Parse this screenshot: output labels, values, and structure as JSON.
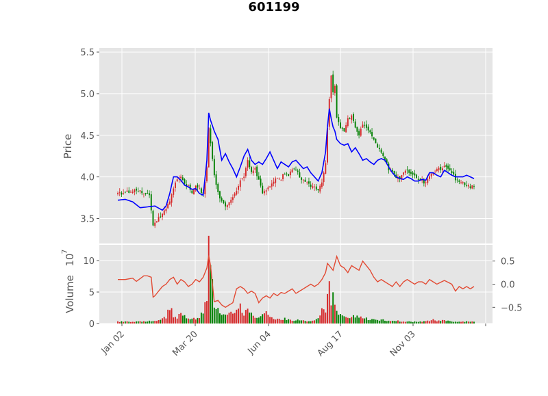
{
  "chart_data": {
    "type": "candlestick",
    "title": "601199",
    "colors": {
      "up": "#d62728",
      "down": "#008000",
      "ma": "#0000ff",
      "secondary": "#e24a33",
      "panel_bg": "#e5e5e5",
      "grid": "#ffffff"
    },
    "x_ticks": [
      "Jan 02",
      "Mar 20",
      "Jun 04",
      "Aug 17",
      "Nov 03"
    ],
    "price_panel": {
      "ylabel": "Price",
      "ylim": [
        3.2,
        5.55
      ],
      "yticks": [
        "3.5",
        "4.0",
        "4.5",
        "5.0",
        "5.5"
      ],
      "ytick_values": [
        3.5,
        4.0,
        4.5,
        5.0,
        5.5
      ],
      "close_series": [
        [
          0,
          3.8
        ],
        [
          5,
          3.82
        ],
        [
          10,
          3.85
        ],
        [
          14,
          3.8
        ],
        [
          17,
          3.78
        ],
        [
          19,
          3.4
        ],
        [
          21,
          3.48
        ],
        [
          24,
          3.55
        ],
        [
          26,
          3.62
        ],
        [
          28,
          3.7
        ],
        [
          30,
          3.85
        ],
        [
          32,
          3.98
        ],
        [
          34,
          4.02
        ],
        [
          36,
          3.9
        ],
        [
          38,
          3.88
        ],
        [
          40,
          3.82
        ],
        [
          42,
          3.9
        ],
        [
          44,
          3.85
        ],
        [
          46,
          3.8
        ],
        [
          48,
          4.1
        ],
        [
          49,
          4.6
        ],
        [
          50,
          4.4
        ],
        [
          52,
          4.0
        ],
        [
          54,
          3.8
        ],
        [
          56,
          3.7
        ],
        [
          58,
          3.65
        ],
        [
          60,
          3.7
        ],
        [
          62,
          3.75
        ],
        [
          64,
          3.85
        ],
        [
          66,
          3.95
        ],
        [
          68,
          4.0
        ],
        [
          70,
          4.2
        ],
        [
          72,
          4.05
        ],
        [
          74,
          4.1
        ],
        [
          76,
          3.95
        ],
        [
          78,
          3.82
        ],
        [
          80,
          3.85
        ],
        [
          82,
          3.9
        ],
        [
          84,
          3.95
        ],
        [
          86,
          4.0
        ],
        [
          88,
          3.98
        ],
        [
          90,
          4.05
        ],
        [
          92,
          4.02
        ],
        [
          94,
          4.1
        ],
        [
          96,
          4.08
        ],
        [
          98,
          4.0
        ],
        [
          100,
          3.95
        ],
        [
          102,
          3.92
        ],
        [
          104,
          3.9
        ],
        [
          106,
          3.88
        ],
        [
          108,
          3.85
        ],
        [
          110,
          3.95
        ],
        [
          112,
          4.15
        ],
        [
          113,
          4.6
        ],
        [
          114,
          4.95
        ],
        [
          115,
          5.2
        ],
        [
          116,
          5.0
        ],
        [
          117,
          5.1
        ],
        [
          118,
          4.7
        ],
        [
          120,
          4.6
        ],
        [
          122,
          4.55
        ],
        [
          124,
          4.7
        ],
        [
          126,
          4.72
        ],
        [
          128,
          4.6
        ],
        [
          130,
          4.5
        ],
        [
          132,
          4.62
        ],
        [
          134,
          4.6
        ],
        [
          136,
          4.55
        ],
        [
          138,
          4.45
        ],
        [
          140,
          4.35
        ],
        [
          142,
          4.3
        ],
        [
          144,
          4.2
        ],
        [
          146,
          4.1
        ],
        [
          148,
          4.05
        ],
        [
          150,
          4.0
        ],
        [
          152,
          3.97
        ],
        [
          154,
          4.05
        ],
        [
          156,
          4.08
        ],
        [
          158,
          4.02
        ],
        [
          160,
          4.0
        ],
        [
          162,
          3.98
        ],
        [
          164,
          3.95
        ],
        [
          166,
          3.93
        ],
        [
          168,
          4.0
        ],
        [
          170,
          4.05
        ],
        [
          172,
          4.1
        ],
        [
          174,
          4.08
        ],
        [
          176,
          4.12
        ],
        [
          178,
          4.1
        ],
        [
          180,
          4.05
        ],
        [
          182,
          3.98
        ],
        [
          184,
          3.95
        ],
        [
          186,
          3.92
        ],
        [
          188,
          3.9
        ],
        [
          190,
          3.88
        ],
        [
          192,
          3.88
        ]
      ],
      "ma_series": [
        [
          0,
          3.72
        ],
        [
          4,
          3.73
        ],
        [
          8,
          3.7
        ],
        [
          12,
          3.63
        ],
        [
          16,
          3.64
        ],
        [
          20,
          3.65
        ],
        [
          24,
          3.6
        ],
        [
          26,
          3.65
        ],
        [
          28,
          3.8
        ],
        [
          30,
          4.0
        ],
        [
          32,
          4.0
        ],
        [
          34,
          3.96
        ],
        [
          36,
          3.9
        ],
        [
          38,
          3.88
        ],
        [
          40,
          3.85
        ],
        [
          42,
          3.86
        ],
        [
          44,
          3.8
        ],
        [
          46,
          3.78
        ],
        [
          48,
          4.2
        ],
        [
          49,
          4.77
        ],
        [
          50,
          4.68
        ],
        [
          52,
          4.55
        ],
        [
          54,
          4.45
        ],
        [
          56,
          4.2
        ],
        [
          58,
          4.28
        ],
        [
          60,
          4.18
        ],
        [
          62,
          4.1
        ],
        [
          64,
          4.0
        ],
        [
          66,
          4.12
        ],
        [
          68,
          4.25
        ],
        [
          70,
          4.33
        ],
        [
          72,
          4.2
        ],
        [
          74,
          4.15
        ],
        [
          76,
          4.18
        ],
        [
          78,
          4.15
        ],
        [
          80,
          4.22
        ],
        [
          82,
          4.3
        ],
        [
          84,
          4.2
        ],
        [
          86,
          4.1
        ],
        [
          88,
          4.18
        ],
        [
          90,
          4.15
        ],
        [
          92,
          4.12
        ],
        [
          94,
          4.18
        ],
        [
          96,
          4.2
        ],
        [
          98,
          4.15
        ],
        [
          100,
          4.1
        ],
        [
          102,
          4.12
        ],
        [
          104,
          4.05
        ],
        [
          106,
          4.0
        ],
        [
          108,
          3.95
        ],
        [
          110,
          4.05
        ],
        [
          112,
          4.3
        ],
        [
          113,
          4.6
        ],
        [
          114,
          4.82
        ],
        [
          115,
          4.7
        ],
        [
          116,
          4.6
        ],
        [
          117,
          4.55
        ],
        [
          118,
          4.45
        ],
        [
          120,
          4.4
        ],
        [
          122,
          4.38
        ],
        [
          124,
          4.4
        ],
        [
          126,
          4.3
        ],
        [
          128,
          4.35
        ],
        [
          130,
          4.28
        ],
        [
          132,
          4.2
        ],
        [
          134,
          4.22
        ],
        [
          136,
          4.18
        ],
        [
          138,
          4.15
        ],
        [
          140,
          4.2
        ],
        [
          142,
          4.22
        ],
        [
          144,
          4.2
        ],
        [
          146,
          4.12
        ],
        [
          148,
          4.05
        ],
        [
          150,
          4.0
        ],
        [
          152,
          3.98
        ],
        [
          154,
          3.97
        ],
        [
          156,
          4.0
        ],
        [
          158,
          3.98
        ],
        [
          160,
          3.95
        ],
        [
          162,
          3.95
        ],
        [
          164,
          3.97
        ],
        [
          166,
          3.96
        ],
        [
          168,
          4.05
        ],
        [
          170,
          4.05
        ],
        [
          172,
          4.02
        ],
        [
          174,
          4.0
        ],
        [
          176,
          4.08
        ],
        [
          178,
          4.05
        ],
        [
          180,
          4.02
        ],
        [
          182,
          4.0
        ],
        [
          184,
          4.0
        ],
        [
          186,
          4.0
        ],
        [
          188,
          4.02
        ],
        [
          190,
          4.0
        ],
        [
          192,
          3.98
        ]
      ]
    },
    "volume_panel": {
      "ylabel": "Volume",
      "scale_label": "10",
      "scale_exponent": "7",
      "ylim": [
        0,
        12.5
      ],
      "yticks": [
        "0",
        "5",
        "10"
      ],
      "ytick_values": [
        0,
        5,
        10
      ],
      "volume_series": [
        [
          0,
          0.3
        ],
        [
          10,
          0.3
        ],
        [
          20,
          0.4
        ],
        [
          24,
          0.8
        ],
        [
          26,
          1.0
        ],
        [
          28,
          2.8
        ],
        [
          30,
          1.2
        ],
        [
          32,
          1.0
        ],
        [
          34,
          1.5
        ],
        [
          36,
          1.2
        ],
        [
          38,
          0.8
        ],
        [
          40,
          0.8
        ],
        [
          42,
          0.7
        ],
        [
          44,
          0.8
        ],
        [
          46,
          2.0
        ],
        [
          48,
          4.5
        ],
        [
          49,
          12.0
        ],
        [
          50,
          11.5
        ],
        [
          51,
          7.5
        ],
        [
          52,
          3.0
        ],
        [
          54,
          2.0
        ],
        [
          56,
          1.5
        ],
        [
          58,
          1.2
        ],
        [
          60,
          1.5
        ],
        [
          62,
          1.8
        ],
        [
          64,
          2.0
        ],
        [
          66,
          2.8
        ],
        [
          68,
          1.5
        ],
        [
          70,
          2.2
        ],
        [
          72,
          2.0
        ],
        [
          74,
          1.0
        ],
        [
          76,
          0.8
        ],
        [
          78,
          1.2
        ],
        [
          80,
          2.0
        ],
        [
          82,
          1.0
        ],
        [
          84,
          0.8
        ],
        [
          86,
          0.7
        ],
        [
          88,
          0.6
        ],
        [
          90,
          0.8
        ],
        [
          92,
          0.6
        ],
        [
          94,
          0.5
        ],
        [
          96,
          0.6
        ],
        [
          98,
          0.5
        ],
        [
          100,
          0.5
        ],
        [
          102,
          0.4
        ],
        [
          104,
          0.4
        ],
        [
          106,
          0.5
        ],
        [
          108,
          1.0
        ],
        [
          110,
          2.0
        ],
        [
          112,
          1.8
        ],
        [
          113,
          4.0
        ],
        [
          114,
          6.0
        ],
        [
          115,
          3.5
        ],
        [
          116,
          6.0
        ],
        [
          117,
          3.5
        ],
        [
          118,
          2.0
        ],
        [
          120,
          1.5
        ],
        [
          122,
          1.2
        ],
        [
          124,
          1.0
        ],
        [
          126,
          1.0
        ],
        [
          128,
          1.2
        ],
        [
          130,
          1.0
        ],
        [
          132,
          0.8
        ],
        [
          134,
          0.8
        ],
        [
          136,
          0.6
        ],
        [
          138,
          0.6
        ],
        [
          140,
          0.5
        ],
        [
          142,
          0.6
        ],
        [
          144,
          0.5
        ],
        [
          146,
          0.4
        ],
        [
          148,
          0.4
        ],
        [
          150,
          0.5
        ],
        [
          152,
          0.3
        ],
        [
          156,
          0.3
        ],
        [
          160,
          0.3
        ],
        [
          164,
          0.3
        ],
        [
          168,
          0.4
        ],
        [
          170,
          0.6
        ],
        [
          172,
          0.4
        ],
        [
          176,
          0.5
        ],
        [
          180,
          0.3
        ],
        [
          184,
          0.3
        ],
        [
          188,
          0.3
        ],
        [
          192,
          0.3
        ]
      ],
      "secondary_ylim": [
        -0.85,
        0.85
      ],
      "secondary_yticks": [
        "0.5",
        "0.0",
        "−0.5"
      ],
      "secondary_ytick_values": [
        0.5,
        0.0,
        -0.5
      ],
      "secondary_series": [
        [
          0,
          0.1
        ],
        [
          4,
          0.1
        ],
        [
          8,
          0.13
        ],
        [
          10,
          0.06
        ],
        [
          12,
          0.12
        ],
        [
          14,
          0.18
        ],
        [
          16,
          0.18
        ],
        [
          18,
          0.15
        ],
        [
          19,
          -0.28
        ],
        [
          20,
          -0.25
        ],
        [
          22,
          -0.15
        ],
        [
          24,
          -0.05
        ],
        [
          26,
          0.0
        ],
        [
          28,
          0.1
        ],
        [
          30,
          0.15
        ],
        [
          32,
          0.0
        ],
        [
          34,
          0.1
        ],
        [
          36,
          0.05
        ],
        [
          38,
          -0.05
        ],
        [
          40,
          0.0
        ],
        [
          42,
          0.1
        ],
        [
          44,
          0.05
        ],
        [
          46,
          0.15
        ],
        [
          48,
          0.35
        ],
        [
          49,
          0.62
        ],
        [
          50,
          0.4
        ],
        [
          52,
          -0.38
        ],
        [
          54,
          -0.35
        ],
        [
          56,
          -0.45
        ],
        [
          58,
          -0.5
        ],
        [
          60,
          -0.45
        ],
        [
          62,
          -0.4
        ],
        [
          64,
          -0.1
        ],
        [
          66,
          -0.05
        ],
        [
          68,
          -0.1
        ],
        [
          70,
          -0.2
        ],
        [
          72,
          -0.15
        ],
        [
          74,
          -0.2
        ],
        [
          76,
          -0.4
        ],
        [
          78,
          -0.3
        ],
        [
          80,
          -0.25
        ],
        [
          82,
          -0.3
        ],
        [
          84,
          -0.2
        ],
        [
          86,
          -0.25
        ],
        [
          88,
          -0.18
        ],
        [
          90,
          -0.2
        ],
        [
          92,
          -0.15
        ],
        [
          94,
          -0.1
        ],
        [
          96,
          -0.2
        ],
        [
          98,
          -0.15
        ],
        [
          100,
          -0.1
        ],
        [
          102,
          -0.05
        ],
        [
          104,
          0.0
        ],
        [
          106,
          -0.05
        ],
        [
          108,
          0.0
        ],
        [
          110,
          0.1
        ],
        [
          112,
          0.25
        ],
        [
          113,
          0.45
        ],
        [
          114,
          0.4
        ],
        [
          116,
          0.3
        ],
        [
          118,
          0.6
        ],
        [
          120,
          0.4
        ],
        [
          122,
          0.35
        ],
        [
          124,
          0.25
        ],
        [
          126,
          0.4
        ],
        [
          128,
          0.35
        ],
        [
          130,
          0.3
        ],
        [
          132,
          0.5
        ],
        [
          134,
          0.4
        ],
        [
          136,
          0.3
        ],
        [
          138,
          0.15
        ],
        [
          140,
          0.05
        ],
        [
          142,
          0.1
        ],
        [
          144,
          0.05
        ],
        [
          146,
          0.0
        ],
        [
          148,
          -0.05
        ],
        [
          150,
          0.05
        ],
        [
          152,
          -0.05
        ],
        [
          154,
          0.05
        ],
        [
          156,
          0.1
        ],
        [
          158,
          0.05
        ],
        [
          160,
          0.0
        ],
        [
          162,
          0.05
        ],
        [
          164,
          0.05
        ],
        [
          166,
          0.0
        ],
        [
          168,
          0.1
        ],
        [
          170,
          0.05
        ],
        [
          172,
          0.0
        ],
        [
          176,
          0.08
        ],
        [
          180,
          0.0
        ],
        [
          182,
          -0.15
        ],
        [
          184,
          -0.05
        ],
        [
          186,
          -0.1
        ],
        [
          188,
          -0.05
        ],
        [
          190,
          -0.1
        ],
        [
          192,
          -0.05
        ]
      ]
    }
  }
}
